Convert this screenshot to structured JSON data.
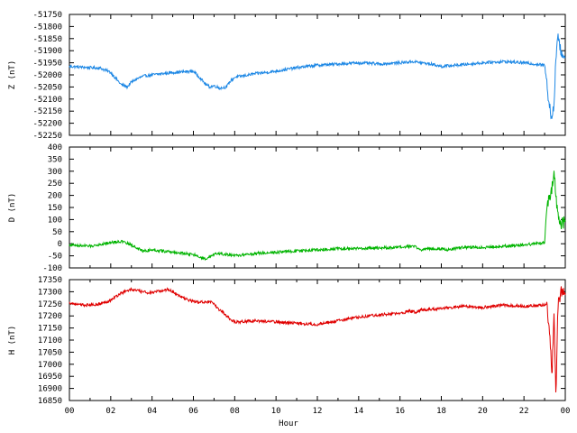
{
  "chart_data": [
    {
      "type": "line",
      "ylabel": "Z (nT)",
      "ylim": [
        -52250,
        -51750
      ],
      "yticks": [
        -51750,
        -51800,
        -51850,
        -51900,
        -51950,
        -52000,
        -52050,
        -52100,
        -52150,
        -52200,
        -52250
      ],
      "color": "#1e88e5",
      "x": [
        0,
        1,
        1.5,
        2,
        2.2,
        2.5,
        2.8,
        3,
        3.3,
        3.6,
        4,
        5,
        6,
        6.3,
        6.6,
        6.8,
        7,
        7.3,
        7.6,
        7.8,
        8,
        9,
        10,
        11,
        12,
        13,
        14,
        15,
        16,
        16.6,
        16.9,
        17.2,
        17.5,
        18,
        19,
        20,
        21,
        22,
        23,
        23.2,
        23.35,
        23.45,
        23.55,
        23.65,
        23.8,
        24
      ],
      "values": [
        -51965,
        -51970,
        -51972,
        -51990,
        -52010,
        -52040,
        -52050,
        -52030,
        -52015,
        -52005,
        -52000,
        -51990,
        -51985,
        -52010,
        -52040,
        -52050,
        -52045,
        -52055,
        -52050,
        -52025,
        -52010,
        -51995,
        -51985,
        -51970,
        -51960,
        -51955,
        -51950,
        -51955,
        -51950,
        -51945,
        -51948,
        -51952,
        -51955,
        -51965,
        -51958,
        -51950,
        -51945,
        -51950,
        -51960,
        -52100,
        -52180,
        -52130,
        -51920,
        -51850,
        -51900,
        -51930
      ]
    },
    {
      "type": "line",
      "ylabel": "D (nT)",
      "ylim": [
        -100,
        400
      ],
      "yticks": [
        400,
        350,
        300,
        250,
        200,
        150,
        100,
        50,
        0,
        -50,
        -100
      ],
      "color": "#00b400",
      "x": [
        0,
        1,
        2,
        2.5,
        3,
        3.3,
        3.6,
        4,
        5,
        6,
        6.3,
        6.6,
        6.9,
        7.2,
        7.6,
        8,
        8.5,
        9,
        10,
        11,
        12,
        13,
        14,
        15,
        16,
        16.7,
        17,
        17.5,
        18,
        18.3,
        19,
        20,
        21,
        22,
        23,
        23.1,
        23.3,
        23.45,
        23.6,
        23.75,
        23.9,
        24
      ],
      "values": [
        -5,
        -10,
        5,
        10,
        -5,
        -20,
        -30,
        -25,
        -35,
        -45,
        -55,
        -65,
        -50,
        -40,
        -45,
        -50,
        -45,
        -40,
        -35,
        -30,
        -25,
        -20,
        -20,
        -18,
        -15,
        -10,
        -25,
        -20,
        -20,
        -25,
        -15,
        -15,
        -10,
        -5,
        5,
        150,
        200,
        300,
        150,
        90,
        80,
        100
      ]
    },
    {
      "type": "line",
      "ylabel": "H (nT)",
      "xlabel": "Hour",
      "ylim": [
        16850,
        17350
      ],
      "yticks": [
        17350,
        17300,
        17250,
        17200,
        17150,
        17100,
        17050,
        17000,
        16950,
        16900,
        16850
      ],
      "color": "#e00000",
      "x": [
        0,
        0.5,
        1,
        1.5,
        2,
        2.5,
        3,
        3.5,
        4,
        4.5,
        4.8,
        5.2,
        5.6,
        6,
        6.3,
        6.6,
        6.9,
        7.2,
        7.5,
        7.8,
        8,
        9,
        10,
        11,
        12,
        13,
        14,
        15,
        16,
        16.5,
        16.8,
        17,
        18,
        19,
        20,
        21,
        22,
        23,
        23.1,
        23.3,
        23.35,
        23.45,
        23.55,
        23.65,
        23.8,
        24
      ],
      "values": [
        17255,
        17245,
        17245,
        17250,
        17265,
        17295,
        17310,
        17300,
        17295,
        17305,
        17310,
        17290,
        17270,
        17260,
        17255,
        17260,
        17255,
        17230,
        17210,
        17185,
        17175,
        17180,
        17175,
        17170,
        17165,
        17180,
        17195,
        17205,
        17210,
        17220,
        17215,
        17225,
        17230,
        17240,
        17235,
        17245,
        17240,
        17245,
        17250,
        17060,
        16940,
        17200,
        16880,
        17250,
        17295,
        17290
      ]
    }
  ],
  "xaxis": {
    "title": "Hour",
    "ticklabels": [
      "00",
      "02",
      "04",
      "06",
      "08",
      "10",
      "12",
      "14",
      "16",
      "18",
      "20",
      "22",
      "00"
    ]
  }
}
